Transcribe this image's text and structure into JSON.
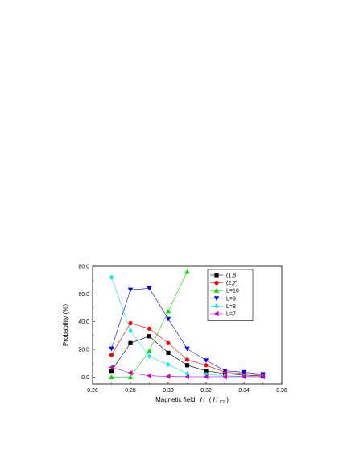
{
  "chart_data": {
    "type": "line",
    "xlabel": {
      "prefix": "Magnetic field",
      "var": "H",
      "unit_open": "(",
      "unit_var": "H",
      "unit_sub": "C2",
      "unit_close": ")"
    },
    "ylabel": "Probability (%)",
    "xlim": [
      0.26,
      0.36
    ],
    "ylim": [
      -5,
      80
    ],
    "x_ticks": [
      0.26,
      0.28,
      0.3,
      0.32,
      0.34,
      0.36
    ],
    "x_tick_labels": [
      "0.26",
      "0.28",
      "0.30",
      "0.32",
      "0.34",
      "0.36"
    ],
    "y_ticks": [
      0,
      20,
      40,
      60,
      80
    ],
    "y_tick_labels": [
      "0.0",
      "20.0",
      "40.0",
      "60.0",
      "80.0"
    ],
    "grid": false,
    "legend_position": "top-right",
    "series": [
      {
        "name": "(1,8)",
        "color": "#000000",
        "marker": "square",
        "x": [
          0.27,
          0.28,
          0.29,
          0.3,
          0.31,
          0.32,
          0.33,
          0.34,
          0.35
        ],
        "y": [
          4.5,
          24.5,
          29.5,
          17.5,
          8.5,
          4.5,
          2.5,
          1.5,
          0.8
        ]
      },
      {
        "name": "(2,7)",
        "color": "#ff0000",
        "marker": "circle",
        "x": [
          0.27,
          0.28,
          0.29,
          0.3,
          0.31,
          0.32,
          0.33,
          0.34,
          0.35
        ],
        "y": [
          16,
          39,
          35,
          24.5,
          12.5,
          8.5,
          3.5,
          2.5,
          1.5
        ]
      },
      {
        "name": "L=10",
        "color": "#00dd00",
        "marker": "triangle-up",
        "x": [
          0.27,
          0.28,
          0.29,
          0.3,
          0.31
        ],
        "y": [
          0,
          0,
          19,
          47.5,
          76
        ]
      },
      {
        "name": "L=9",
        "color": "#0000ff",
        "marker": "triangle-down",
        "x": [
          0.27,
          0.28,
          0.29,
          0.3,
          0.31,
          0.32,
          0.33,
          0.34,
          0.35
        ],
        "y": [
          20.5,
          63,
          64,
          42,
          20.5,
          12,
          4.5,
          3.5,
          2
        ]
      },
      {
        "name": "L=8",
        "color": "#00eeee",
        "marker": "diamond",
        "x": [
          0.27,
          0.28,
          0.29,
          0.3,
          0.31,
          0.32,
          0.33,
          0.34,
          0.35
        ],
        "y": [
          72,
          33.5,
          15,
          9,
          2.5,
          2,
          1,
          0.5,
          0.3
        ]
      },
      {
        "name": "L=7",
        "color": "#cc00cc",
        "marker": "triangle-left",
        "x": [
          0.27,
          0.28,
          0.29,
          0.3,
          0.31,
          0.32,
          0.33,
          0.34,
          0.35
        ],
        "y": [
          7,
          3,
          1,
          0.5,
          0.3,
          0.3,
          0.3,
          0.3,
          0.3
        ]
      }
    ]
  }
}
